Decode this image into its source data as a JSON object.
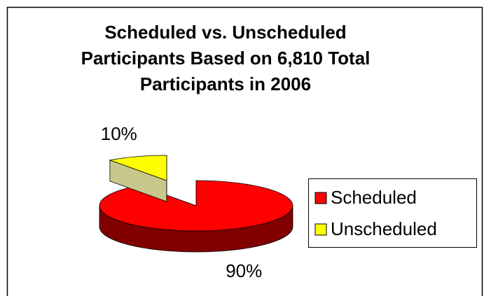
{
  "chart_data": {
    "type": "pie",
    "title": "Scheduled vs. Unscheduled Participants Based on 6,810 Total Participants in 2006",
    "categories": [
      "Scheduled",
      "Unscheduled"
    ],
    "values": [
      90,
      10
    ],
    "value_labels": [
      "90%",
      "10%"
    ],
    "colors": [
      "#ff0000",
      "#ffff00"
    ],
    "side_colors": [
      "#800000",
      "#c8c88c"
    ],
    "exploded": [
      false,
      true
    ],
    "legend": "right"
  }
}
